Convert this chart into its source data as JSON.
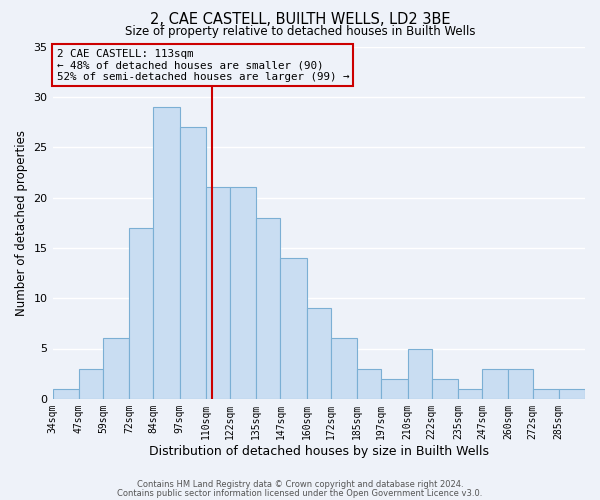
{
  "title": "2, CAE CASTELL, BUILTH WELLS, LD2 3BE",
  "subtitle": "Size of property relative to detached houses in Builth Wells",
  "xlabel": "Distribution of detached houses by size in Builth Wells",
  "ylabel": "Number of detached properties",
  "bar_values": [
    1,
    3,
    6,
    17,
    29,
    27,
    21,
    21,
    18,
    14,
    9,
    6,
    3,
    2,
    5,
    2,
    1,
    3,
    3,
    1,
    1
  ],
  "bin_labels": [
    "34sqm",
    "47sqm",
    "59sqm",
    "72sqm",
    "84sqm",
    "97sqm",
    "110sqm",
    "122sqm",
    "135sqm",
    "147sqm",
    "160sqm",
    "172sqm",
    "185sqm",
    "197sqm",
    "210sqm",
    "222sqm",
    "235sqm",
    "247sqm",
    "260sqm",
    "272sqm",
    "285sqm"
  ],
  "bin_edges": [
    34,
    47,
    59,
    72,
    84,
    97,
    110,
    122,
    135,
    147,
    160,
    172,
    185,
    197,
    210,
    222,
    235,
    247,
    260,
    272,
    285,
    298
  ],
  "bar_color": "#c9ddf2",
  "bar_edge_color": "#7bafd4",
  "property_value": 113,
  "vline_color": "#cc0000",
  "annotation_text": "2 CAE CASTELL: 113sqm\n← 48% of detached houses are smaller (90)\n52% of semi-detached houses are larger (99) →",
  "annotation_box_edge": "#cc0000",
  "ylim": [
    0,
    35
  ],
  "yticks": [
    0,
    5,
    10,
    15,
    20,
    25,
    30,
    35
  ],
  "footer1": "Contains HM Land Registry data © Crown copyright and database right 2024.",
  "footer2": "Contains public sector information licensed under the Open Government Licence v3.0.",
  "background_color": "#eef2f9",
  "grid_color": "#ffffff"
}
